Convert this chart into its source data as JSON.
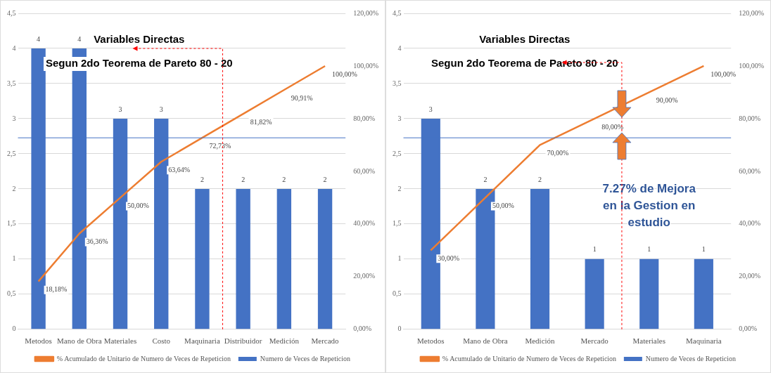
{
  "chart_data": [
    {
      "type": "bar",
      "categories": [
        "Metodos",
        "Mano de Obra",
        "Materiales",
        "Costo",
        "Maquinaria",
        "Distribuidor",
        "Medición",
        "Mercado"
      ],
      "series": [
        {
          "name": "Numero de Veces de Repeticion",
          "color": "#4472c4",
          "values": [
            4,
            4,
            3,
            3,
            2,
            2,
            2,
            2
          ],
          "value_labels": [
            "4",
            "4",
            "3",
            "3",
            "2",
            "2",
            "2",
            "2"
          ]
        },
        {
          "name": "% Acumulado de Unitario de Numero de Veces de Repeticion",
          "type": "line",
          "axis": "y2",
          "color": "#ed7d31",
          "values": [
            18.18,
            36.36,
            50.0,
            63.64,
            72.73,
            81.82,
            90.91,
            100.0
          ],
          "value_labels": [
            "18,18%",
            "36,36%",
            "50,00%",
            "63,64%",
            "72,73%",
            "81,82%",
            "90,91%",
            "100,00%"
          ]
        }
      ],
      "ylim": [
        0,
        4.5
      ],
      "yticks": [
        {
          "value": 0,
          "label": "0"
        },
        {
          "value": 0.5,
          "label": "0,5"
        },
        {
          "value": 1,
          "label": "1"
        },
        {
          "value": 1.5,
          "label": "1,5"
        },
        {
          "value": 2,
          "label": "2"
        },
        {
          "value": 2.5,
          "label": "2,5"
        },
        {
          "value": 3,
          "label": "3"
        },
        {
          "value": 3.5,
          "label": "3,5"
        },
        {
          "value": 4,
          "label": "4"
        },
        {
          "value": 4.5,
          "label": "4,5"
        }
      ],
      "y2lim": [
        0,
        120
      ],
      "y2ticks": [
        {
          "value": 0,
          "label": "0,00%"
        },
        {
          "value": 20,
          "label": "20,00%"
        },
        {
          "value": 40,
          "label": "40,00%"
        },
        {
          "value": 60,
          "label": "60,00%"
        },
        {
          "value": 80,
          "label": "80,00%"
        },
        {
          "value": 100,
          "label": "100,00%"
        },
        {
          "value": 120,
          "label": "120,00%"
        }
      ],
      "ref_lines": [
        {
          "axis": "y2",
          "value": 72.73,
          "color": "#4472c4"
        }
      ],
      "grid": "y",
      "legend": "bottom",
      "marker": "none",
      "annotations": [
        "Variables Directas",
        "Segun 2do Teorema de Pareto 80 - 20"
      ]
    },
    {
      "type": "bar",
      "categories": [
        "Metodos",
        "Mano de Obra",
        "Medición",
        "Mercado",
        "Materiales",
        "Maquinaria"
      ],
      "series": [
        {
          "name": "Numero de Veces de Repeticion",
          "color": "#4472c4",
          "values": [
            3,
            2,
            2,
            1,
            1,
            1
          ],
          "value_labels": [
            "3",
            "2",
            "2",
            "1",
            "1",
            "1"
          ]
        },
        {
          "name": "% Acumulado de Unitario de Numero de Veces de Repeticion",
          "type": "line",
          "axis": "y2",
          "color": "#ed7d31",
          "values": [
            30.0,
            50.0,
            70.0,
            80.0,
            90.0,
            100.0
          ],
          "value_labels": [
            "30,00%",
            "50,00%",
            "70,00%",
            "80,00%",
            "90,00%",
            "100,00%"
          ]
        }
      ],
      "ylim": [
        0,
        4.5
      ],
      "yticks": [
        {
          "value": 0,
          "label": "0"
        },
        {
          "value": 0.5,
          "label": "0,5"
        },
        {
          "value": 1,
          "label": "1"
        },
        {
          "value": 1.5,
          "label": "1,5"
        },
        {
          "value": 2,
          "label": "2"
        },
        {
          "value": 2.5,
          "label": "2,5"
        },
        {
          "value": 3,
          "label": "3"
        },
        {
          "value": 3.5,
          "label": "3,5"
        },
        {
          "value": 4,
          "label": "4"
        },
        {
          "value": 4.5,
          "label": "4,5"
        }
      ],
      "y2lim": [
        0,
        120
      ],
      "y2ticks": [
        {
          "value": 0,
          "label": "0,00%"
        },
        {
          "value": 20,
          "label": "20,00%"
        },
        {
          "value": 40,
          "label": "40,00%"
        },
        {
          "value": 60,
          "label": "60,00%"
        },
        {
          "value": 80,
          "label": "80,00%"
        },
        {
          "value": 100,
          "label": "100,00%"
        },
        {
          "value": 120,
          "label": "120,00%"
        }
      ],
      "ref_lines": [
        {
          "axis": "y2",
          "value": 72.73,
          "color": "#4472c4"
        }
      ],
      "grid": "y",
      "legend": "bottom",
      "marker": "none",
      "annotations": [
        "Variables Directas",
        "Segun 2do Teorema de Pareto 80 - 20",
        "7.27% de Mejora en la Gestion en estudio"
      ]
    }
  ]
}
